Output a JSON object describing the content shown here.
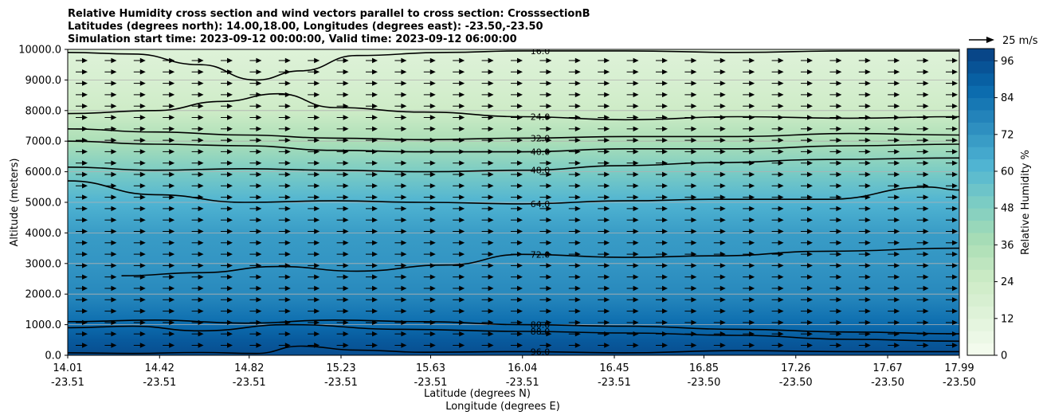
{
  "chart_data": {
    "type": "heatmap",
    "title_lines": [
      "Relative Humidity cross section and wind vectors parallel to cross section: CrosssectionB",
      "Latitudes (degrees north): 14.00,18.00, Longitudes (degrees east): -23.50,-23.50",
      "Simulation start time: 2023-09-12 00:00:00, Valid time: 2023-09-12 06:00:00"
    ],
    "ylabel": "Altitude (meters)",
    "xlabel": "Latitude (degrees N)",
    "xlabel2": "Longitude (degrees E)",
    "colorbar_label": "Relative Humidity %",
    "ylim": [
      0,
      10000
    ],
    "y_ticks": [
      0,
      1000,
      2000,
      3000,
      4000,
      5000,
      6000,
      7000,
      8000,
      9000,
      10000
    ],
    "y_tick_labels": [
      "0.0",
      "1000.0",
      "2000.0",
      "3000.0",
      "4000.0",
      "5000.0",
      "6000.0",
      "7000.0",
      "8000.0",
      "9000.0",
      "10000.0"
    ],
    "x_ticks": [
      {
        "lat": "14.01",
        "lon": "-23.51"
      },
      {
        "lat": "14.42",
        "lon": "-23.51"
      },
      {
        "lat": "14.82",
        "lon": "-23.51"
      },
      {
        "lat": "15.23",
        "lon": "-23.51"
      },
      {
        "lat": "15.63",
        "lon": "-23.51"
      },
      {
        "lat": "16.04",
        "lon": "-23.51"
      },
      {
        "lat": "16.45",
        "lon": "-23.51"
      },
      {
        "lat": "16.85",
        "lon": "-23.50"
      },
      {
        "lat": "17.26",
        "lon": "-23.50"
      },
      {
        "lat": "17.67",
        "lon": "-23.50"
      },
      {
        "lat": "17.99",
        "lon": "-23.50"
      }
    ],
    "colorbar_range": [
      0,
      100
    ],
    "colorbar_ticks": [
      0,
      12,
      24,
      36,
      48,
      60,
      72,
      84,
      96
    ],
    "colormap": [
      "#f7fcf0",
      "#e0f3db",
      "#ccebc5",
      "#a8ddb5",
      "#7bccc4",
      "#4eb3d3",
      "#2b8cbe",
      "#0868ac",
      "#084081"
    ],
    "grid": "horizontal",
    "quiver_key": "25 m/s",
    "rh_profile": [
      {
        "altitude": 0,
        "rh": 96
      },
      {
        "altitude": 500,
        "rh": 92
      },
      {
        "altitude": 1000,
        "rh": 86
      },
      {
        "altitude": 2000,
        "rh": 76
      },
      {
        "altitude": 3000,
        "rh": 72
      },
      {
        "altitude": 4000,
        "rh": 70
      },
      {
        "altitude": 5000,
        "rh": 62
      },
      {
        "altitude": 6000,
        "rh": 50
      },
      {
        "altitude": 7000,
        "rh": 36
      },
      {
        "altitude": 8000,
        "rh": 24
      },
      {
        "altitude": 9000,
        "rh": 18
      },
      {
        "altitude": 10000,
        "rh": 14
      }
    ],
    "contours": [
      {
        "level": 96,
        "label": "96.0",
        "points": [
          [
            14.01,
            80
          ],
          [
            14.3,
            60
          ],
          [
            14.6,
            90
          ],
          [
            14.85,
            60
          ],
          [
            15.05,
            300
          ],
          [
            15.3,
            170
          ],
          [
            15.6,
            100
          ],
          [
            16.04,
            120
          ],
          [
            16.5,
            80
          ],
          [
            17.0,
            150
          ],
          [
            17.5,
            120
          ],
          [
            17.99,
            120
          ]
        ]
      },
      {
        "level": 88,
        "label": "88.0",
        "points": [
          [
            14.01,
            900
          ],
          [
            14.3,
            950
          ],
          [
            14.6,
            800
          ],
          [
            15.0,
            1000
          ],
          [
            15.5,
            850
          ],
          [
            16.04,
            780
          ],
          [
            16.5,
            730
          ],
          [
            17.0,
            650
          ],
          [
            17.5,
            520
          ],
          [
            17.99,
            460
          ]
        ]
      },
      {
        "level": 80,
        "label": "80.0",
        "points": [
          [
            14.01,
            1100
          ],
          [
            14.4,
            1150
          ],
          [
            14.8,
            1050
          ],
          [
            15.2,
            1150
          ],
          [
            15.6,
            1100
          ],
          [
            16.04,
            1000
          ],
          [
            16.5,
            950
          ],
          [
            17.0,
            850
          ],
          [
            17.5,
            760
          ],
          [
            17.99,
            700
          ]
        ]
      },
      {
        "level": 72,
        "label": "72.0",
        "points": [
          [
            14.25,
            2600
          ],
          [
            14.6,
            2700
          ],
          [
            14.95,
            2900
          ],
          [
            15.3,
            2750
          ],
          [
            15.7,
            2950
          ],
          [
            16.04,
            3300
          ],
          [
            16.5,
            3200
          ],
          [
            16.9,
            3250
          ],
          [
            17.4,
            3400
          ],
          [
            17.99,
            3500
          ]
        ]
      },
      {
        "level": 64,
        "label": "64.0",
        "points": [
          [
            14.01,
            5700
          ],
          [
            14.4,
            5250
          ],
          [
            14.8,
            5000
          ],
          [
            15.2,
            5050
          ],
          [
            15.6,
            5000
          ],
          [
            16.04,
            4950
          ],
          [
            16.5,
            5050
          ],
          [
            16.9,
            5100
          ],
          [
            17.4,
            5100
          ],
          [
            17.85,
            5500
          ],
          [
            17.99,
            5400
          ]
        ]
      },
      {
        "level": 48,
        "label": "48.0",
        "points": [
          [
            14.01,
            6150
          ],
          [
            14.4,
            6050
          ],
          [
            14.8,
            6100
          ],
          [
            15.2,
            6050
          ],
          [
            15.6,
            6000
          ],
          [
            16.04,
            6050
          ],
          [
            16.5,
            6200
          ],
          [
            16.9,
            6300
          ],
          [
            17.4,
            6400
          ],
          [
            17.99,
            6450
          ]
        ]
      },
      {
        "level": 40,
        "label": "40.0",
        "points": [
          [
            14.01,
            7000
          ],
          [
            14.4,
            6900
          ],
          [
            14.8,
            6850
          ],
          [
            15.2,
            6700
          ],
          [
            15.6,
            6650
          ],
          [
            16.04,
            6650
          ],
          [
            16.5,
            6750
          ],
          [
            17.0,
            6750
          ],
          [
            17.5,
            6850
          ],
          [
            17.99,
            6900
          ]
        ]
      },
      {
        "level": 32,
        "label": "32.0",
        "points": [
          [
            14.01,
            7400
          ],
          [
            14.4,
            7300
          ],
          [
            14.8,
            7200
          ],
          [
            15.2,
            7100
          ],
          [
            15.6,
            7050
          ],
          [
            16.04,
            7100
          ],
          [
            16.5,
            7150
          ],
          [
            17.0,
            7150
          ],
          [
            17.5,
            7250
          ],
          [
            17.99,
            7200
          ]
        ]
      },
      {
        "level": 24,
        "label": "24.0",
        "points": [
          [
            14.01,
            7900
          ],
          [
            14.4,
            8000
          ],
          [
            14.7,
            8300
          ],
          [
            14.95,
            8550
          ],
          [
            15.2,
            8100
          ],
          [
            15.6,
            7950
          ],
          [
            16.04,
            7800
          ],
          [
            16.5,
            7700
          ],
          [
            17.0,
            7800
          ],
          [
            17.5,
            7750
          ],
          [
            17.99,
            7800
          ]
        ]
      },
      {
        "level": 16,
        "label": "16.0",
        "points": [
          [
            14.01,
            9900
          ],
          [
            14.3,
            9850
          ],
          [
            14.6,
            9500
          ],
          [
            14.85,
            9000
          ],
          [
            15.05,
            9300
          ],
          [
            15.3,
            9800
          ],
          [
            15.7,
            9900
          ],
          [
            16.04,
            9950
          ],
          [
            16.5,
            9950
          ],
          [
            17.0,
            9900
          ],
          [
            17.5,
            9950
          ],
          [
            17.99,
            9950
          ]
        ]
      }
    ]
  }
}
